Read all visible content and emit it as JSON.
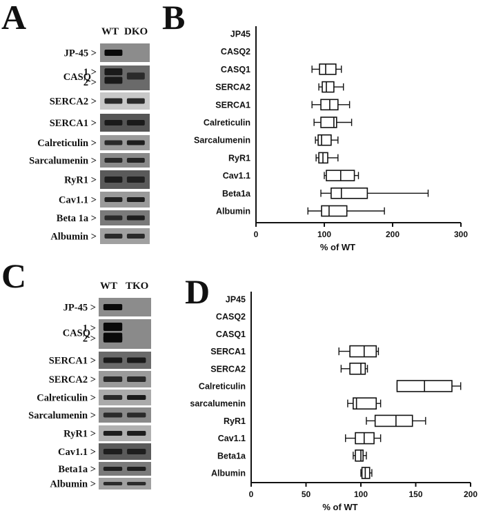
{
  "panels": {
    "A": {
      "letter": "A",
      "lanes": [
        "WT",
        "DKO"
      ],
      "rows": [
        {
          "label": "JP-45 >",
          "bg": "#8c8c8c",
          "wt": "#0a0a0a",
          "ko": "#8c8c8c"
        },
        {
          "label": "CASQ",
          "sub1": "1 >",
          "sub2": "2 >",
          "bg": "#6a6a6a",
          "wt": "#1a1a1a",
          "ko": "#2a2a2a"
        },
        {
          "label": "SERCA2 >",
          "bg": "#c8c8c8",
          "wt": "#2a2a2a",
          "ko": "#2a2a2a"
        },
        {
          "label": "SERCA1 >",
          "bg": "#555555",
          "wt": "#1a1a1a",
          "ko": "#1a1a1a"
        },
        {
          "label": "Calreticulin >",
          "bg": "#9a9a9a",
          "wt": "#2a2a2a",
          "ko": "#1e1e1e"
        },
        {
          "label": "Sarcalumenin >",
          "bg": "#8a8a8a",
          "wt": "#2a2a2a",
          "ko": "#252525"
        },
        {
          "label": "RyR1 >",
          "bg": "#5a5a5a",
          "wt": "#1e1e1e",
          "ko": "#222222"
        },
        {
          "label": "Cav1.1 >",
          "bg": "#9a9a9a",
          "wt": "#222222",
          "ko": "#1e1e1e"
        },
        {
          "label": "Beta 1a >",
          "bg": "#7a7a7a",
          "wt": "#2a2a2a",
          "ko": "#1e1e1e"
        },
        {
          "label": "Albumin >",
          "bg": "#a0a0a0",
          "wt": "#2a2a2a",
          "ko": "#2a2a2a"
        }
      ]
    },
    "C": {
      "letter": "C",
      "lanes": [
        "WT",
        "TKO"
      ],
      "rows": [
        {
          "label": "JP-45 >",
          "bg": "#8c8c8c",
          "wt": "#0a0a0a",
          "ko": "#8c8c8c"
        },
        {
          "label": "CASQ",
          "sub1": "1 >",
          "sub2": "2 >",
          "bg": "#8a8a8a",
          "wt": "#0a0a0a",
          "ko": "#8a8a8a"
        },
        {
          "label": "SERCA1 >",
          "bg": "#6a6a6a",
          "wt": "#1a1a1a",
          "ko": "#1a1a1a"
        },
        {
          "label": "SERCA2 >",
          "bg": "#9a9a9a",
          "wt": "#2a2a2a",
          "ko": "#2a2a2a"
        },
        {
          "label": "Calreticulin >",
          "bg": "#aaaaaa",
          "wt": "#2a2a2a",
          "ko": "#1a1a1a"
        },
        {
          "label": "Sarcalumenin >",
          "bg": "#8a8a8a",
          "wt": "#2a2a2a",
          "ko": "#2a2a2a"
        },
        {
          "label": "RyR1 >",
          "bg": "#b0b0b0",
          "wt": "#1e1e1e",
          "ko": "#1e1e1e"
        },
        {
          "label": "Cav1.1 >",
          "bg": "#5a5a5a",
          "wt": "#1e1e1e",
          "ko": "#1e1e1e"
        },
        {
          "label": "Beta1a >",
          "bg": "#7a7a7a",
          "wt": "#1e1e1e",
          "ko": "#1e1e1e"
        },
        {
          "label": "Albumin >",
          "bg": "#a0a0a0",
          "wt": "#2a2a2a",
          "ko": "#2a2a2a"
        }
      ]
    },
    "B": {
      "letter": "B"
    },
    "D": {
      "letter": "D"
    }
  },
  "chart_data": [
    {
      "panel": "B",
      "type": "boxplot",
      "orientation": "horizontal",
      "xlabel": "% of WT",
      "xlim": [
        0,
        300
      ],
      "xticks": [
        0,
        100,
        200,
        300
      ],
      "categories": [
        "JP45",
        "CASQ2",
        "CASQ1",
        "SERCA2",
        "SERCA1",
        "Calreticulin",
        "Sarcalumenin",
        "RyR1",
        "Cav1.1",
        "Beta1a",
        "Albumin"
      ],
      "boxes": [
        null,
        null,
        {
          "min": 82,
          "q1": 93,
          "median": 102,
          "q3": 117,
          "max": 125
        },
        {
          "min": 92,
          "q1": 97,
          "median": 103,
          "q3": 114,
          "max": 128
        },
        {
          "min": 82,
          "q1": 95,
          "median": 108,
          "q3": 120,
          "max": 137
        },
        {
          "min": 85,
          "q1": 95,
          "median": 114,
          "q3": 118,
          "max": 140
        },
        {
          "min": 87,
          "q1": 91,
          "median": 96,
          "q3": 110,
          "max": 120
        },
        {
          "min": 88,
          "q1": 92,
          "median": 98,
          "q3": 105,
          "max": 120
        },
        {
          "min": 100,
          "q1": 103,
          "median": 124,
          "q3": 144,
          "max": 150
        },
        {
          "min": 95,
          "q1": 110,
          "median": 125,
          "q3": 163,
          "max": 252
        },
        {
          "min": 76,
          "q1": 96,
          "median": 107,
          "q3": 133,
          "max": 188
        }
      ]
    },
    {
      "panel": "D",
      "type": "boxplot",
      "orientation": "horizontal",
      "xlabel": "% of WT",
      "xlim": [
        0,
        200
      ],
      "xticks": [
        0,
        50,
        100,
        150,
        200
      ],
      "categories": [
        "JP45",
        "CASQ2",
        "CASQ1",
        "SERCA1",
        "SERCA2",
        "Calreticulin",
        "sarcalumenin",
        "RyR1",
        "Cav1.1",
        "Beta1a",
        "Albumin"
      ],
      "boxes": [
        null,
        null,
        null,
        {
          "min": 80,
          "q1": 90,
          "median": 103,
          "q3": 114,
          "max": 116
        },
        {
          "min": 82,
          "q1": 90,
          "median": 100,
          "q3": 104,
          "max": 106
        },
        {
          "min": 133,
          "q1": 133,
          "median": 158,
          "q3": 183,
          "max": 191
        },
        {
          "min": 88,
          "q1": 93,
          "median": 96,
          "q3": 114,
          "max": 118
        },
        {
          "min": 105,
          "q1": 113,
          "median": 132,
          "q3": 147,
          "max": 159
        },
        {
          "min": 86,
          "q1": 95,
          "median": 103,
          "q3": 112,
          "max": 118
        },
        {
          "min": 93,
          "q1": 95,
          "median": 100,
          "q3": 102,
          "max": 105
        },
        {
          "min": 100,
          "q1": 101,
          "median": 104,
          "q3": 108,
          "max": 110
        }
      ]
    }
  ]
}
